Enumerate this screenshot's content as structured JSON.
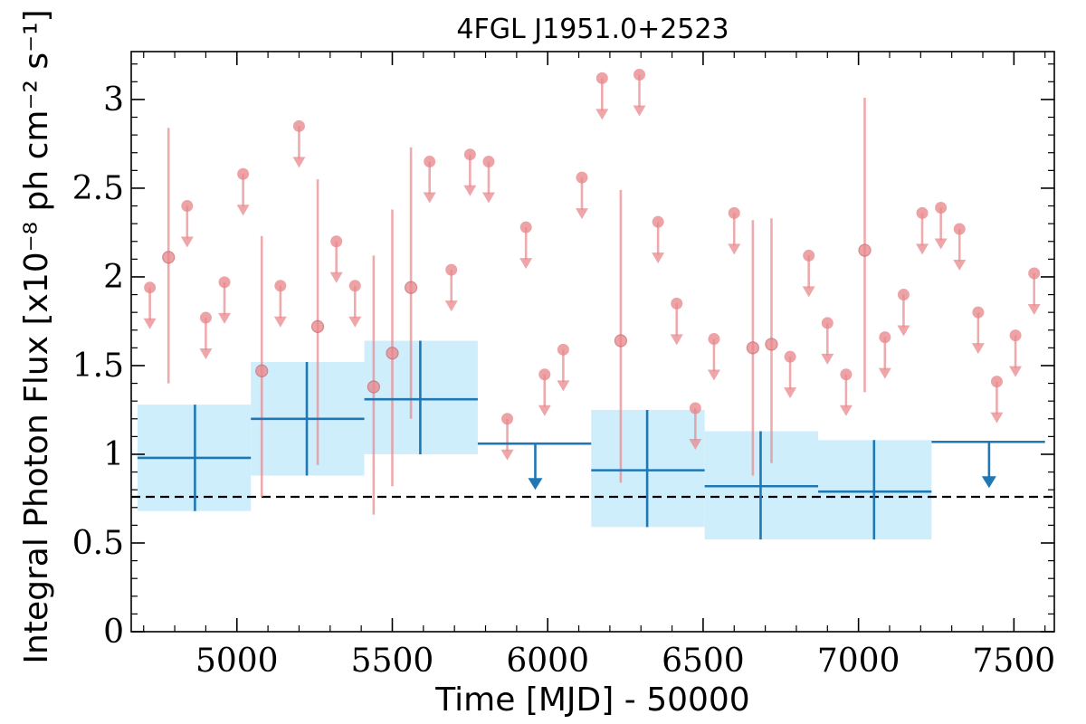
{
  "chart_data": {
    "type": "scatter",
    "title": "4FGL J1951.0+2523",
    "xlabel": "Time [MJD] - 50000",
    "ylabel": "Integral Photon Flux [x10⁻⁸ ph cm⁻² s⁻¹]",
    "xlim": [
      4660,
      7630
    ],
    "ylim": [
      0,
      3.27
    ],
    "x_ticks": [
      5000,
      5500,
      6000,
      6500,
      7000,
      7500
    ],
    "x_tick_labels": [
      "5000",
      "5500",
      "6000",
      "6500",
      "7000",
      "7500"
    ],
    "y_ticks": [
      0,
      0.5,
      1,
      1.5,
      2,
      2.5,
      3
    ],
    "y_tick_labels": [
      "0",
      "0.5",
      "1",
      "1.5",
      "2",
      "2.5",
      "3"
    ],
    "reference_line": {
      "y": 0.76,
      "style": "dashed",
      "color": "#000000"
    },
    "colors": {
      "long_bins": "#1f77b4",
      "long_bin_band": "#cfeefc",
      "short_bins": "#e8888c"
    },
    "long_bins": [
      {
        "x": 4865,
        "x_lo": 4680,
        "x_hi": 5045,
        "y": 0.98,
        "y_lo": 0.68,
        "y_hi": 1.28,
        "upper_limit": false
      },
      {
        "x": 5225,
        "x_lo": 5045,
        "x_hi": 5410,
        "y": 1.2,
        "y_lo": 0.88,
        "y_hi": 1.52,
        "upper_limit": false
      },
      {
        "x": 5590,
        "x_lo": 5410,
        "x_hi": 5775,
        "y": 1.31,
        "y_lo": 1.0,
        "y_hi": 1.64,
        "upper_limit": false
      },
      {
        "x": 5960,
        "x_lo": 5775,
        "x_hi": 6140,
        "y": 1.06,
        "y_lo": null,
        "y_hi": null,
        "upper_limit": true
      },
      {
        "x": 6320,
        "x_lo": 6140,
        "x_hi": 6505,
        "y": 0.91,
        "y_lo": 0.59,
        "y_hi": 1.25,
        "upper_limit": false
      },
      {
        "x": 6685,
        "x_lo": 6505,
        "x_hi": 6870,
        "y": 0.82,
        "y_lo": 0.52,
        "y_hi": 1.13,
        "upper_limit": false
      },
      {
        "x": 7050,
        "x_lo": 6870,
        "x_hi": 7235,
        "y": 0.79,
        "y_lo": 0.52,
        "y_hi": 1.08,
        "upper_limit": false
      },
      {
        "x": 7420,
        "x_lo": 7235,
        "x_hi": 7600,
        "y": 1.07,
        "y_lo": null,
        "y_hi": null,
        "upper_limit": true
      }
    ],
    "short_bins": [
      {
        "x": 4720,
        "y": 1.94,
        "upper_limit": true
      },
      {
        "x": 4780,
        "y": 2.11,
        "upper_limit": false,
        "y_lo": 1.4,
        "y_hi": 2.84
      },
      {
        "x": 4840,
        "y": 2.4,
        "upper_limit": true
      },
      {
        "x": 4900,
        "y": 1.77,
        "upper_limit": true
      },
      {
        "x": 4960,
        "y": 1.97,
        "upper_limit": true
      },
      {
        "x": 5020,
        "y": 2.58,
        "upper_limit": true
      },
      {
        "x": 5080,
        "y": 1.47,
        "upper_limit": false,
        "y_lo": 0.76,
        "y_hi": 2.23
      },
      {
        "x": 5140,
        "y": 1.95,
        "upper_limit": true
      },
      {
        "x": 5200,
        "y": 2.85,
        "upper_limit": true
      },
      {
        "x": 5260,
        "y": 1.72,
        "upper_limit": false,
        "y_lo": 0.94,
        "y_hi": 2.55
      },
      {
        "x": 5320,
        "y": 2.2,
        "upper_limit": true
      },
      {
        "x": 5380,
        "y": 1.95,
        "upper_limit": true
      },
      {
        "x": 5440,
        "y": 1.38,
        "upper_limit": false,
        "y_lo": 0.66,
        "y_hi": 2.12
      },
      {
        "x": 5500,
        "y": 1.57,
        "upper_limit": false,
        "y_lo": 0.82,
        "y_hi": 2.38
      },
      {
        "x": 5560,
        "y": 1.94,
        "upper_limit": false,
        "y_lo": 1.2,
        "y_hi": 2.73
      },
      {
        "x": 5620,
        "y": 2.65,
        "upper_limit": true
      },
      {
        "x": 5690,
        "y": 2.04,
        "upper_limit": true
      },
      {
        "x": 5750,
        "y": 2.69,
        "upper_limit": true
      },
      {
        "x": 5810,
        "y": 2.65,
        "upper_limit": true
      },
      {
        "x": 5870,
        "y": 1.2,
        "upper_limit": true
      },
      {
        "x": 5930,
        "y": 2.28,
        "upper_limit": true
      },
      {
        "x": 5990,
        "y": 1.45,
        "upper_limit": true
      },
      {
        "x": 6050,
        "y": 1.59,
        "upper_limit": true
      },
      {
        "x": 6110,
        "y": 2.56,
        "upper_limit": true
      },
      {
        "x": 6175,
        "y": 3.12,
        "upper_limit": true
      },
      {
        "x": 6235,
        "y": 1.64,
        "upper_limit": false,
        "y_lo": 0.84,
        "y_hi": 2.49
      },
      {
        "x": 6295,
        "y": 3.14,
        "upper_limit": true
      },
      {
        "x": 6355,
        "y": 2.31,
        "upper_limit": true
      },
      {
        "x": 6415,
        "y": 1.85,
        "upper_limit": true
      },
      {
        "x": 6475,
        "y": 1.26,
        "upper_limit": true
      },
      {
        "x": 6535,
        "y": 1.65,
        "upper_limit": true
      },
      {
        "x": 6600,
        "y": 2.36,
        "upper_limit": true
      },
      {
        "x": 6660,
        "y": 1.6,
        "upper_limit": false,
        "y_lo": 0.88,
        "y_hi": 2.32
      },
      {
        "x": 6720,
        "y": 1.62,
        "upper_limit": false,
        "y_lo": 0.95,
        "y_hi": 2.33
      },
      {
        "x": 6780,
        "y": 1.55,
        "upper_limit": true
      },
      {
        "x": 6840,
        "y": 2.12,
        "upper_limit": true
      },
      {
        "x": 6900,
        "y": 1.74,
        "upper_limit": true
      },
      {
        "x": 6960,
        "y": 1.45,
        "upper_limit": true
      },
      {
        "x": 7020,
        "y": 2.15,
        "upper_limit": false,
        "y_lo": 1.35,
        "y_hi": 3.01
      },
      {
        "x": 7085,
        "y": 1.66,
        "upper_limit": true
      },
      {
        "x": 7145,
        "y": 1.9,
        "upper_limit": true
      },
      {
        "x": 7205,
        "y": 2.36,
        "upper_limit": true
      },
      {
        "x": 7265,
        "y": 2.39,
        "upper_limit": true
      },
      {
        "x": 7325,
        "y": 2.27,
        "upper_limit": true
      },
      {
        "x": 7385,
        "y": 1.8,
        "upper_limit": true
      },
      {
        "x": 7445,
        "y": 1.41,
        "upper_limit": true
      },
      {
        "x": 7505,
        "y": 1.67,
        "upper_limit": true
      },
      {
        "x": 7565,
        "y": 2.02,
        "upper_limit": true
      }
    ]
  }
}
